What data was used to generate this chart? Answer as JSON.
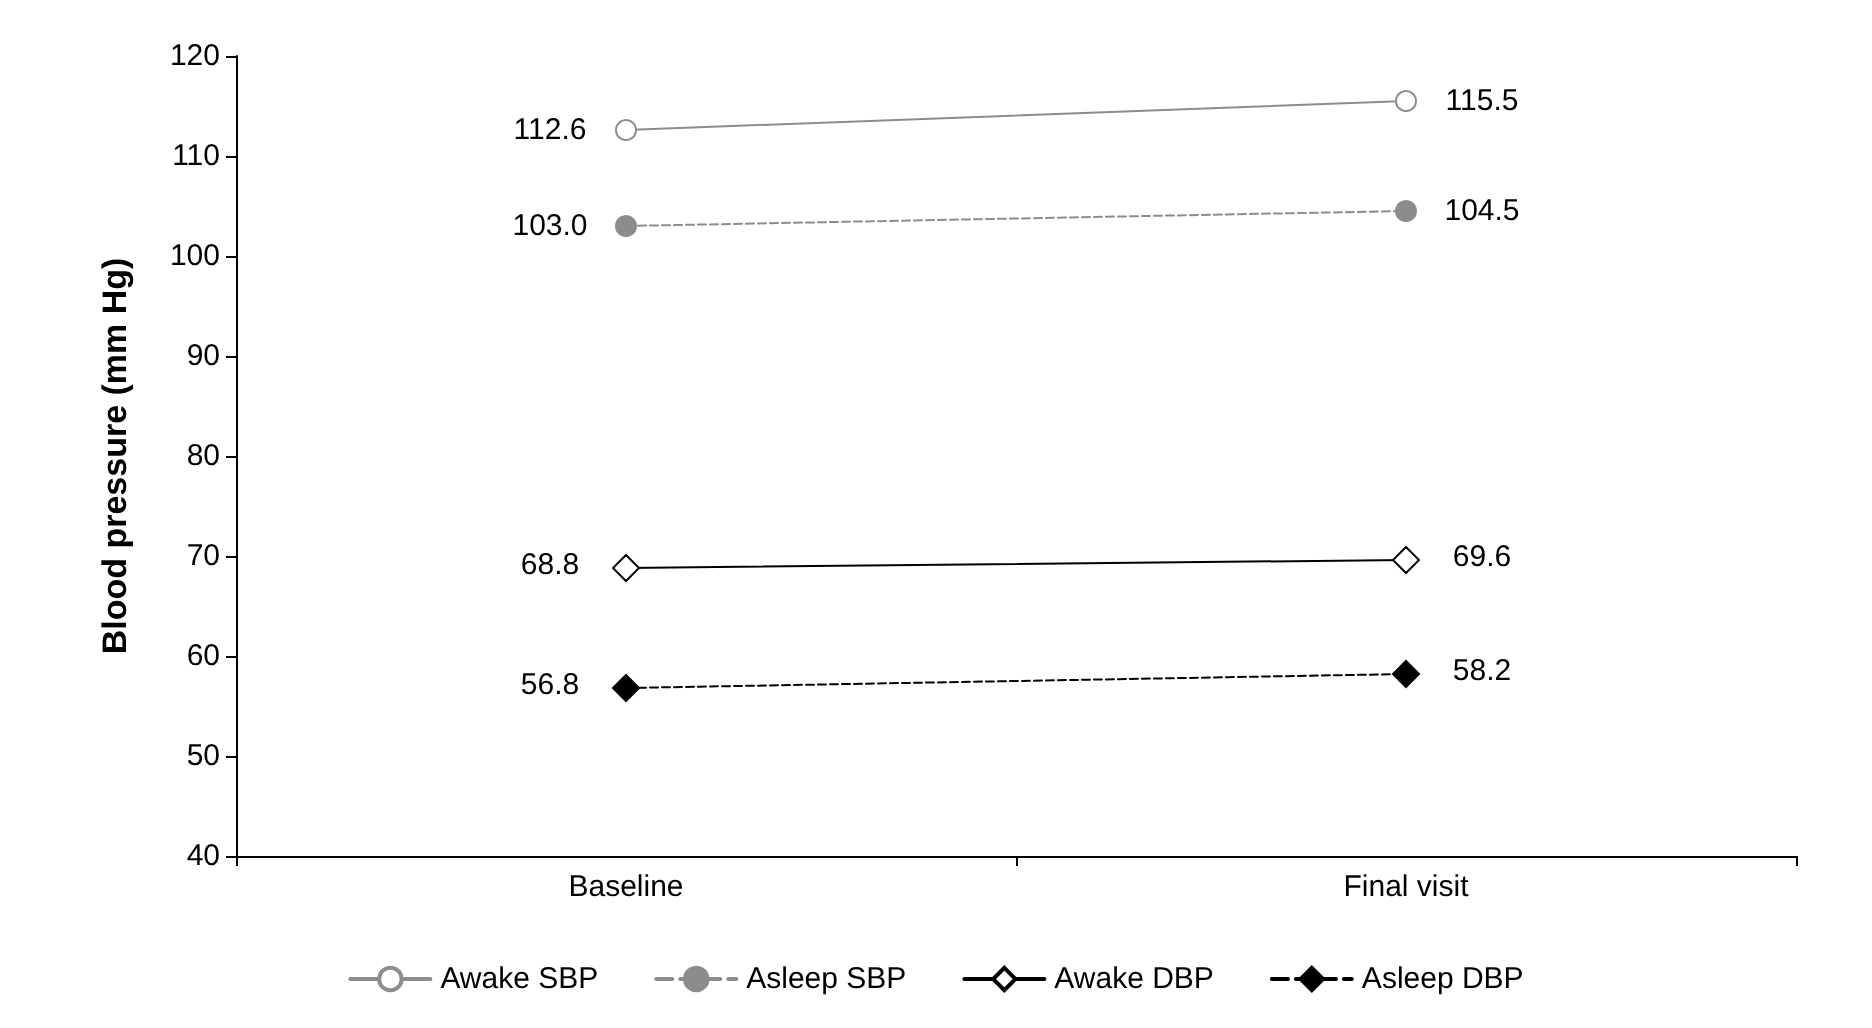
{
  "chart_data": {
    "type": "line",
    "ylabel": "Blood pressure (mm Hg)",
    "categories": [
      "Baseline",
      "Final visit"
    ],
    "series": [
      {
        "name": "Awake SBP",
        "color": "#8c8c8c",
        "values": [
          112.6,
          115.5
        ],
        "value_labels": [
          "112.6",
          "115.5"
        ],
        "marker": "circle",
        "line_style": "solid"
      },
      {
        "name": "Asleep SBP",
        "color": "#8c8c8c",
        "values": [
          103.0,
          104.5
        ],
        "value_labels": [
          "103.0",
          "104.5"
        ],
        "marker": "circle",
        "line_style": "dashed"
      },
      {
        "name": "Awake DBP",
        "color": "#000000",
        "values": [
          68.8,
          69.6
        ],
        "value_labels": [
          "68.8",
          "69.6"
        ],
        "marker": "diamond",
        "line_style": "solid"
      },
      {
        "name": "Asleep DBP",
        "color": "#000000",
        "values": [
          56.8,
          58.2
        ],
        "value_labels": [
          "56.8",
          "58.2"
        ],
        "marker": "diamond",
        "line_style": "dashed"
      }
    ],
    "ylim": [
      40,
      120
    ],
    "yticks": [
      40,
      50,
      60,
      70,
      80,
      90,
      100,
      110,
      120
    ],
    "grid": false,
    "legend": "bottom"
  }
}
